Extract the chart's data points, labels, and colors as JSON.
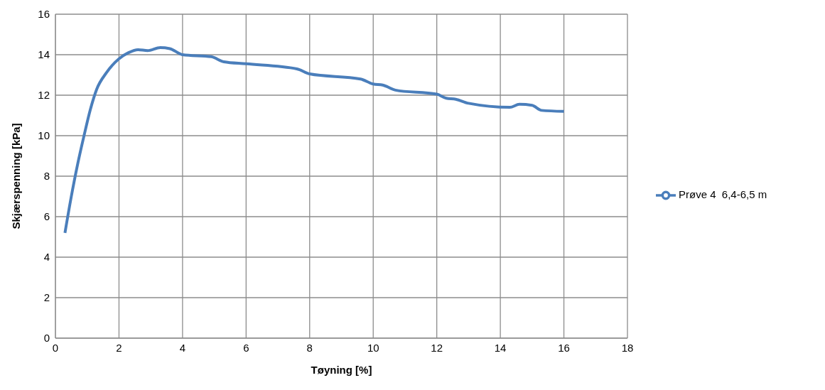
{
  "chart_data": {
    "type": "line",
    "xlabel": "Tøyning [%]",
    "ylabel": "Skjærspenning [kPa]",
    "xlim": [
      0,
      18
    ],
    "xticks": [
      0,
      2,
      4,
      6,
      8,
      10,
      12,
      14,
      16,
      18
    ],
    "ylim": [
      0,
      16
    ],
    "yticks": [
      0,
      2,
      4,
      6,
      8,
      10,
      12,
      14,
      16
    ],
    "grid": true,
    "legend": "right",
    "marker": "none",
    "line_style": "solid",
    "series": [
      {
        "name": "Prøve 4  6,4-6,5 m",
        "color": "#4a7ebb",
        "x": [
          0.3,
          0.5,
          0.7,
          0.9,
          1.1,
          1.3,
          1.6,
          2.0,
          2.3,
          2.6,
          2.9,
          3.3,
          3.6,
          4.0,
          4.9,
          5.3,
          6.0,
          7.6,
          8.0,
          9.6,
          10.0,
          10.3,
          10.7,
          12.0,
          12.3,
          12.6,
          13.0,
          14.3,
          14.6,
          15.0,
          15.3,
          16.0
        ],
        "values": [
          5.2,
          7.0,
          8.6,
          10.0,
          11.3,
          12.3,
          13.1,
          13.8,
          14.1,
          14.25,
          14.2,
          14.35,
          14.3,
          14.0,
          13.9,
          13.65,
          13.55,
          13.3,
          13.05,
          12.8,
          12.55,
          12.5,
          12.25,
          12.05,
          11.85,
          11.8,
          11.6,
          11.4,
          11.55,
          11.5,
          11.25,
          11.2
        ]
      }
    ]
  }
}
